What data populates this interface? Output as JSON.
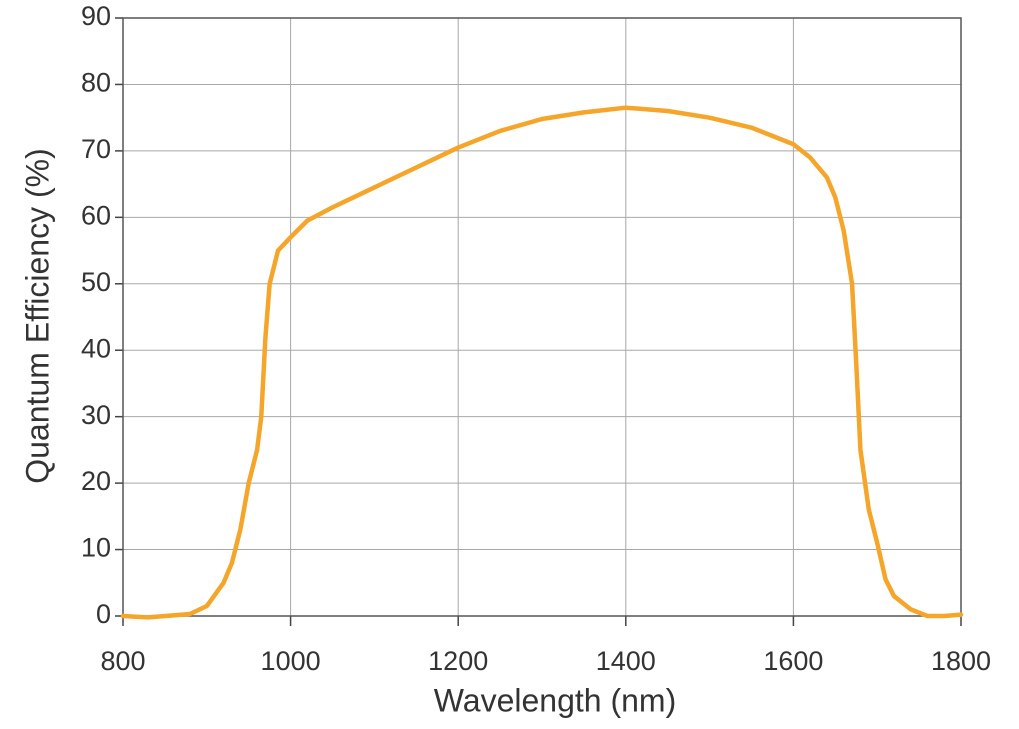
{
  "chart_data": {
    "type": "line",
    "x_label": "Wavelength (nm)",
    "y_label": "Quantum Efficiency (%)",
    "x": [
      800,
      830,
      860,
      880,
      900,
      920,
      930,
      940,
      950,
      960,
      965,
      970,
      975,
      985,
      1000,
      1020,
      1050,
      1100,
      1150,
      1200,
      1250,
      1300,
      1350,
      1400,
      1450,
      1500,
      1550,
      1600,
      1620,
      1640,
      1650,
      1660,
      1670,
      1675,
      1680,
      1690,
      1700,
      1710,
      1720,
      1740,
      1760,
      1780,
      1800
    ],
    "series": [
      {
        "name": "Quantum Efficiency",
        "color": "#f5a52a",
        "values": [
          0,
          -0.2,
          0.1,
          0.3,
          1.5,
          5,
          8,
          13,
          20,
          25,
          30,
          42,
          50,
          55,
          57,
          59.5,
          61.5,
          64.5,
          67.5,
          70.5,
          73,
          74.8,
          75.8,
          76.5,
          76,
          75,
          73.5,
          71,
          69,
          66,
          63,
          58,
          50,
          38,
          25,
          16,
          11,
          5.5,
          3,
          1,
          0,
          0,
          0.2
        ]
      }
    ],
    "xlim": [
      800,
      1800
    ],
    "xticks": [
      800,
      1000,
      1200,
      1400,
      1600,
      1800
    ],
    "ylim": [
      0,
      90
    ],
    "yticks": [
      0,
      10,
      20,
      30,
      40,
      50,
      60,
      70,
      80,
      90
    ],
    "grid": true
  }
}
